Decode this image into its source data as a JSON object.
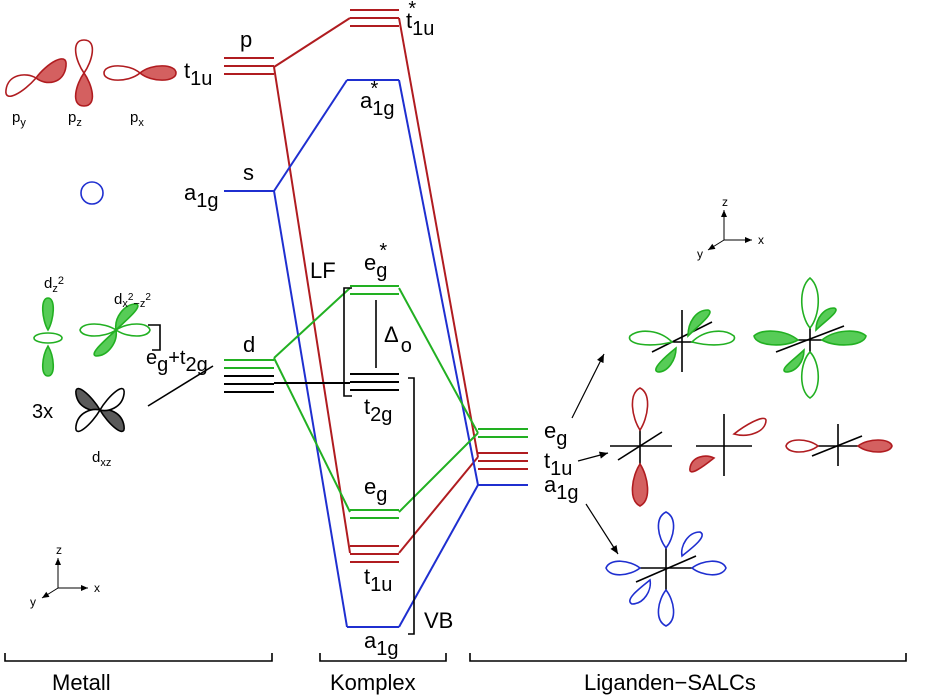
{
  "colors": {
    "p_red": "#b01c20",
    "s_blue": "#1f2fd0",
    "d_green": "#22b022",
    "green_fill": "#57cc57",
    "red_fill": "#d46060",
    "grey_fill": "#5a5a5a",
    "ink": "#000000"
  },
  "metal": {
    "p_letter": "p",
    "t1u": {
      "main": "t",
      "sub": "1u"
    },
    "s_letter": "s",
    "a1g": {
      "main": "a",
      "sub": "1g"
    },
    "d_letter": "d",
    "eg_t2g": {
      "e": "e",
      "e_sub": "g",
      "plus_t": "+t",
      "t_sub": "2g"
    },
    "py": {
      "main": "p",
      "sub": "y"
    },
    "pz": {
      "main": "p",
      "sub": "z"
    },
    "px": {
      "main": "p",
      "sub": "x"
    },
    "dz2": {
      "main": "d",
      "sub": "z",
      "sup": "2"
    },
    "dx2y2": {
      "main": "d",
      "sub": "x",
      "sup1": "2",
      "mid": "−z",
      "sup2": "2"
    },
    "three_x": "3x",
    "dxz": {
      "main": "d",
      "sub": "xz"
    },
    "section_label": "Metall"
  },
  "complex": {
    "t1u_star": {
      "main": "t",
      "sub": "1u",
      "sup": "*"
    },
    "a1g_star": {
      "main": "a",
      "sub": "1g",
      "sup": "*"
    },
    "lf": "LF",
    "eg_star": {
      "main": "e",
      "sub": "g",
      "sup": "*"
    },
    "delta": "Δ",
    "delta_sub": "o",
    "t2g": {
      "main": "t",
      "sub": "2g"
    },
    "eg": {
      "main": "e",
      "sub": "g"
    },
    "t1u": {
      "main": "t",
      "sub": "1u"
    },
    "a1g": {
      "main": "a",
      "sub": "1g"
    },
    "vb": "VB",
    "section_label": "Komplex"
  },
  "ligand": {
    "eg": {
      "main": "e",
      "sub": "g"
    },
    "t1u": {
      "main": "t",
      "sub": "1u"
    },
    "a1g": {
      "main": "a",
      "sub": "1g"
    },
    "section_label": "Liganden−SALCs"
  },
  "axes": {
    "z": "z",
    "y": "y",
    "x": "x"
  }
}
